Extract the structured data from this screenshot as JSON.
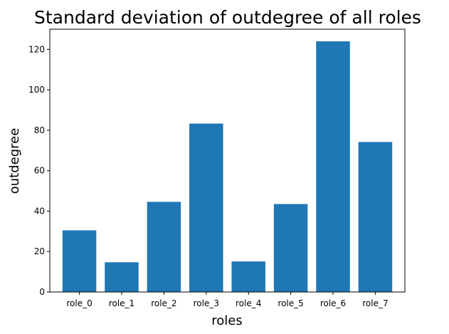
{
  "chart_data": {
    "type": "bar",
    "title": "Standard deviation of outdegree of all roles",
    "xlabel": "roles",
    "ylabel": "outdegree",
    "categories": [
      "role_0",
      "role_1",
      "role_2",
      "role_3",
      "role_4",
      "role_5",
      "role_6",
      "role_7"
    ],
    "values": [
      30.5,
      14.7,
      44.6,
      83.3,
      15.1,
      43.5,
      124.0,
      74.2
    ],
    "ylim": [
      0,
      130
    ],
    "yticks": [
      0,
      20,
      40,
      60,
      80,
      100,
      120
    ],
    "bar_color": "#1f77b4",
    "grid": false,
    "legend": "none"
  }
}
